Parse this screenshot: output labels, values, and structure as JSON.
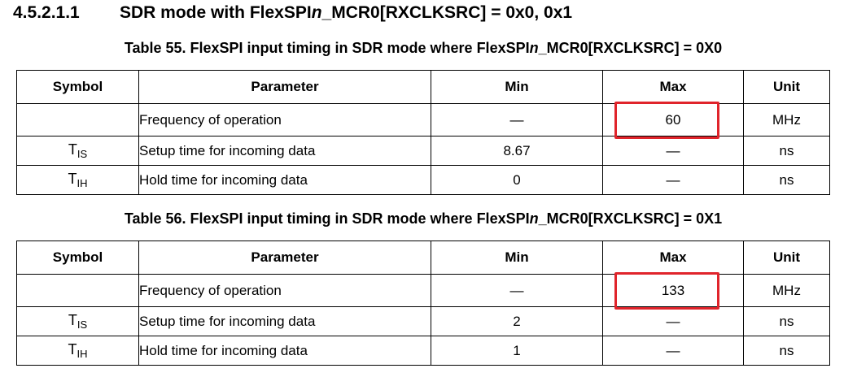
{
  "heading": {
    "number": "4.5.2.1.1",
    "title_prefix": "SDR mode with FlexSPI",
    "title_italic": "n",
    "title_suffix": "_MCR0[RXCLKSRC] = 0x0, 0x1"
  },
  "columns": [
    "Symbol",
    "Parameter",
    "Min",
    "Max",
    "Unit"
  ],
  "tables": [
    {
      "caption_prefix": "Table 55. FlexSPI input timing in SDR mode where FlexSPI",
      "caption_italic": "n",
      "caption_suffix": "_MCR0[RXCLKSRC] = 0X0",
      "rows": [
        {
          "symbol_main": "",
          "symbol_sub": "",
          "parameter": "Frequency of operation",
          "min": "—",
          "max": "60",
          "unit": "MHz",
          "highlighted": true
        },
        {
          "symbol_main": "T",
          "symbol_sub": "IS",
          "parameter": "Setup time for incoming data",
          "min": "8.67",
          "max": "—",
          "unit": "ns"
        },
        {
          "symbol_main": "T",
          "symbol_sub": "IH",
          "parameter": "Hold time for incoming data",
          "min": "0",
          "max": "—",
          "unit": "ns"
        }
      ]
    },
    {
      "caption_prefix": "Table 56. FlexSPI input timing in SDR mode where FlexSPI",
      "caption_italic": "n",
      "caption_suffix": "_MCR0[RXCLKSRC] = 0X1",
      "rows": [
        {
          "symbol_main": "",
          "symbol_sub": "",
          "parameter": "Frequency of operation",
          "min": "—",
          "max": "133",
          "unit": "MHz",
          "highlighted": true
        },
        {
          "symbol_main": "T",
          "symbol_sub": "IS",
          "parameter": "Setup time for incoming data",
          "min": "2",
          "max": "—",
          "unit": "ns"
        },
        {
          "symbol_main": "T",
          "symbol_sub": "IH",
          "parameter": "Hold time for incoming data",
          "min": "1",
          "max": "—",
          "unit": "ns"
        }
      ]
    }
  ],
  "colors": {
    "highlight": "#e0242b"
  }
}
